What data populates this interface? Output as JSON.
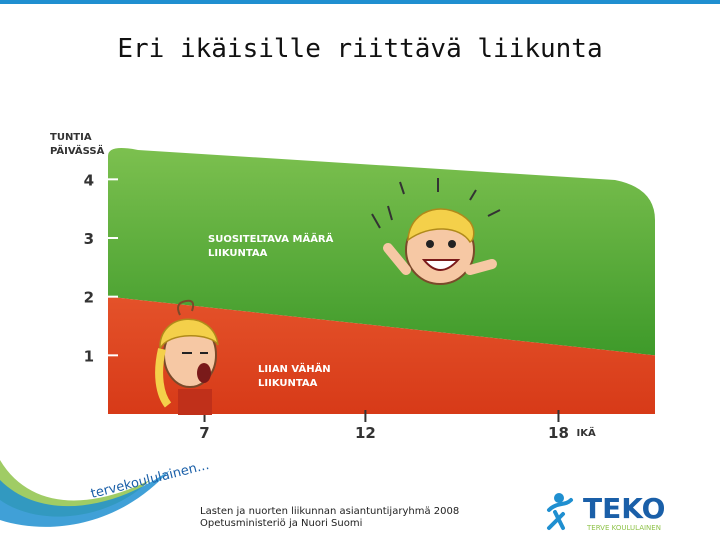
{
  "slide": {
    "title": "Eri ikäisille riittävä liikunta",
    "footer_line1": "Lasten ja nuorten liikunnan asiantuntijaryhmä 2008",
    "footer_line2": "Opetusministeriö ja Nuori Suomi",
    "brand_text": "tervekoululainen...",
    "logo_text": "TEKO",
    "logo_subtext": "TERVE KOULULAINEN"
  },
  "chart_data": {
    "type": "area",
    "ylabel_line1": "TUNTIA",
    "ylabel_line2": "PÄIVÄSSÄ",
    "xlabel": "IKÄ",
    "x_ticks": [
      7,
      12,
      18
    ],
    "y_ticks": [
      1,
      2,
      3,
      4
    ],
    "xlim": [
      4,
      21
    ],
    "ylim": [
      0,
      4.5
    ],
    "threshold_line": {
      "x": [
        4,
        21
      ],
      "y": [
        2.0,
        1.0
      ]
    },
    "zones": [
      {
        "label_line1": "SUOSITELTAVA MÄÄRÄ",
        "label_line2": "LIIKUNTAA",
        "color": "#4fab35",
        "position": "above"
      },
      {
        "label_line1": "LIIAN VÄHÄN",
        "label_line2": "LIIKUNTAA",
        "color": "#e0431f",
        "position": "below"
      }
    ],
    "colors": {
      "green": "#4fab35",
      "red": "#e0431f",
      "axis": "#333333"
    }
  }
}
